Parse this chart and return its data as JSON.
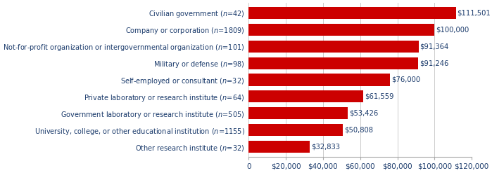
{
  "categories": [
    "Other research institute (n=32)",
    "University, college, or other educational institution (n=1155)",
    "Government laboratory or research institute (n=505)",
    "Private laboratory or research institute (n=64)",
    "Self-employed or consultant (n=32)",
    "Military or defense (n=98)",
    "Not-for-profit organization or intergovernmental organization (n=101)",
    "Company or corporation (n=1809)",
    "Civilian government (n=42)"
  ],
  "categories_rendered": [
    "Other research institute ($\\it{n}$=32)",
    "University, college, or other educational institution ($\\it{n}$=1155)",
    "Government laboratory or research institute ($\\it{n}$=505)",
    "Private laboratory or research institute ($\\it{n}$=64)",
    "Self-employed or consultant ($\\it{n}$=32)",
    "Military or defense ($\\it{n}$=98)",
    "Not-for-profit organization or intergovernmental organization ($\\it{n}$=101)",
    "Company or corporation ($\\it{n}$=1809)",
    "Civilian government ($\\it{n}$=42)"
  ],
  "values": [
    32833,
    50808,
    53426,
    61559,
    76000,
    91246,
    91364,
    100000,
    111501
  ],
  "bar_color": "#cc0000",
  "label_color": "#1a3a6b",
  "value_labels": [
    "$32,833",
    "$50,808",
    "$53,426",
    "$61,559",
    "$76,000",
    "$91,246",
    "$91,364",
    "$100,000",
    "$111,501"
  ],
  "xlim": [
    0,
    120000
  ],
  "xticks": [
    0,
    20000,
    40000,
    60000,
    80000,
    100000,
    120000
  ],
  "xtick_labels": [
    "0",
    "$20,000",
    "$40,000",
    "$60,000",
    "$80,000",
    "$100,000",
    "$120,000"
  ],
  "bar_height": 0.72,
  "bg_color": "#ffffff",
  "font_size_labels": 7.0,
  "font_size_values": 7.2,
  "font_size_ticks": 7.5
}
